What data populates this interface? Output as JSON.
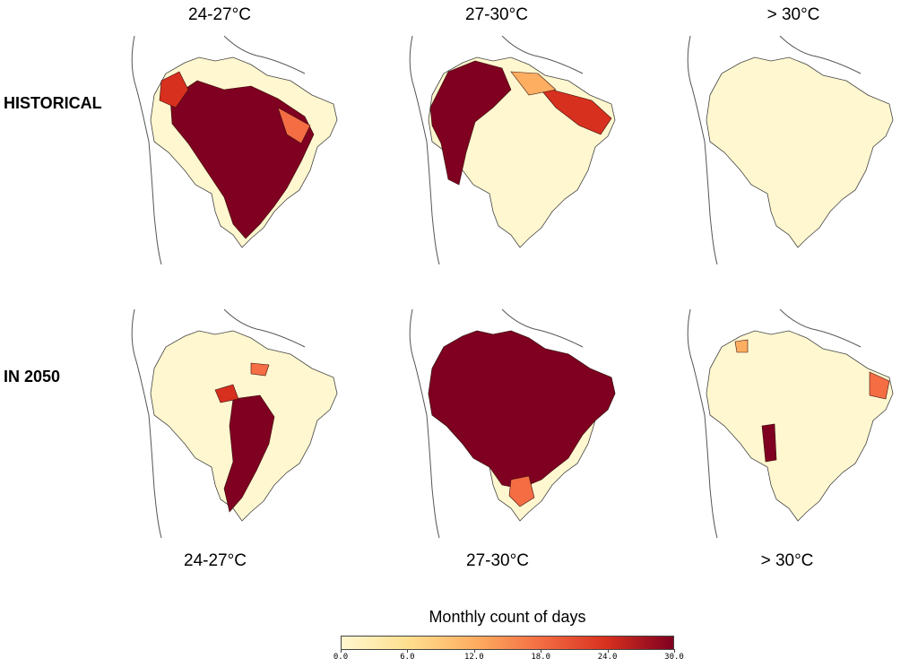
{
  "columns_top": [
    "24-27°C",
    "27-30°C",
    "> 30°C"
  ],
  "columns_bottom": [
    "24-27°C",
    "27-30°C",
    "> 30°C"
  ],
  "rows": [
    "HISTORICAL",
    "IN 2050"
  ],
  "colorbar": {
    "title": "Monthly count of days",
    "ticks": [
      "0.0",
      "6.0",
      "12.0",
      "18.0",
      "24.0",
      "30.0"
    ],
    "range": [
      0,
      30
    ],
    "colors": [
      "#fff7cf",
      "#fedf8f",
      "#fdae61",
      "#f46d43",
      "#d7301f",
      "#7f0020"
    ]
  },
  "panels": [
    {
      "row": "HISTORICAL",
      "range": "24-27°C",
      "intensity": "high in central and southeastern interior"
    },
    {
      "row": "HISTORICAL",
      "range": "27-30°C",
      "intensity": "high in north and northwest"
    },
    {
      "row": "HISTORICAL",
      "range": "> 30°C",
      "intensity": "near zero everywhere"
    },
    {
      "row": "IN 2050",
      "range": "24-27°C",
      "intensity": "high in southeast strip"
    },
    {
      "row": "IN 2050",
      "range": "27-30°C",
      "intensity": "high across most of country"
    },
    {
      "row": "IN 2050",
      "range": "> 30°C",
      "intensity": "localized spots in northeast and west"
    }
  ]
}
